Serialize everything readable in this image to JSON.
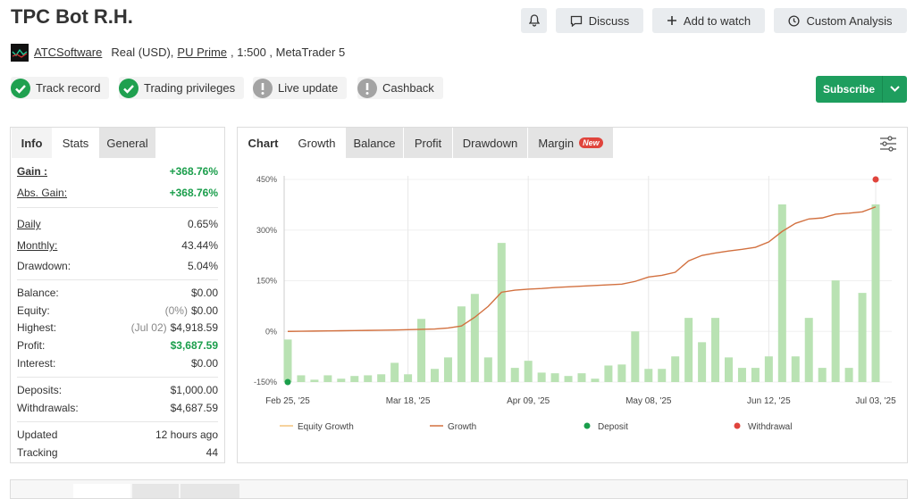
{
  "header": {
    "title": "TPC Bot R.H.",
    "author": "ATCSoftware",
    "account": "Real (USD),",
    "broker": "PU Prime",
    "details": ", 1:500 , MetaTrader 5"
  },
  "buttons": [
    "Discuss",
    "Add to watch",
    "Custom Analysis",
    "Subscribe"
  ],
  "badges": [
    {
      "label": "Track record",
      "ok": true
    },
    {
      "label": "Trading privileges",
      "ok": true
    },
    {
      "label": "Live update",
      "ok": false
    },
    {
      "label": "Cashback",
      "ok": false
    }
  ],
  "stats_tabs": [
    "Info",
    "Stats",
    "General"
  ],
  "stats": [
    [
      {
        "label": "Gain :",
        "value": "+368.76%",
        "link": true,
        "bold": true,
        "positive": true
      },
      {
        "label": "Abs. Gain:",
        "value": "+368.76%",
        "link": true,
        "positive": true
      }
    ],
    [
      {
        "label": "Daily",
        "value": "0.65%",
        "link": true
      },
      {
        "label": "Monthly:",
        "value": "43.44%",
        "link": true
      },
      {
        "label": "Drawdown:",
        "value": "5.04%"
      }
    ],
    [
      {
        "label": "Balance:",
        "value": "$0.00"
      },
      {
        "label": "Equity:",
        "note": "(0%)",
        "value": "$0.00"
      },
      {
        "label": "Highest:",
        "note": "(Jul 02)",
        "value": "$4,918.59"
      },
      {
        "label": "Profit:",
        "value": "$3,687.59",
        "positive": true
      },
      {
        "label": "Interest:",
        "value": "$0.00"
      }
    ],
    [
      {
        "label": "Deposits:",
        "value": "$1,000.00"
      },
      {
        "label": "Withdrawals:",
        "value": "$4,687.59"
      }
    ],
    [
      {
        "label": "Updated",
        "value": "12 hours ago"
      },
      {
        "label": "Tracking",
        "value": "44"
      }
    ]
  ],
  "chart_tabs": [
    "Chart",
    "Growth",
    "Balance",
    "Profit",
    "Drawdown",
    "Margin"
  ],
  "new_badge": "New",
  "chart_data": {
    "type": "bar",
    "categories": [
      "Feb 25, '25",
      null,
      null,
      null,
      null,
      null,
      null,
      null,
      null,
      "Mar 18, '25",
      null,
      null,
      null,
      null,
      null,
      null,
      null,
      null,
      "Apr 09, '25",
      null,
      null,
      null,
      null,
      null,
      null,
      null,
      null,
      "May 08, '25",
      null,
      null,
      null,
      null,
      null,
      null,
      null,
      null,
      "Jun 12, '25",
      null,
      null,
      null,
      null,
      null,
      null,
      null,
      "Jul 03, '25"
    ],
    "bar_color": "#b9e2b3",
    "values": [
      -24,
      -130,
      -143,
      -130,
      -140,
      -132,
      -130,
      -127,
      -93,
      -127,
      37,
      -111,
      -77,
      74,
      111,
      -77,
      262,
      -108,
      -87,
      -122,
      -124,
      -132,
      -124,
      -140,
      -101,
      -98,
      0,
      -111,
      -111,
      -74,
      40,
      -32,
      40,
      -77,
      -108,
      -108,
      -74,
      376,
      -74,
      40,
      -108,
      151,
      -108,
      114,
      376
    ],
    "series": [
      {
        "name": "Equity Growth",
        "color": "#f2c27c"
      },
      {
        "name": "Growth",
        "color": "#d2703f",
        "values": [
          0,
          0.5,
          1,
          1.5,
          2,
          2.5,
          3,
          3.5,
          4,
          5,
          6,
          7,
          10,
          16,
          42,
          74,
          116,
          122,
          125,
          127,
          130,
          132,
          134,
          136,
          138,
          140,
          148,
          161,
          166,
          175,
          209,
          225,
          232,
          238,
          243,
          249,
          265,
          296,
          320,
          333,
          336,
          347,
          350,
          354,
          368.76
        ]
      }
    ],
    "deposits": {
      "name": "Deposit",
      "color": "#1a9e4b",
      "values": [
        -150,
        null,
        null,
        null,
        null,
        null,
        null,
        null,
        null,
        null,
        null,
        null,
        null,
        null,
        null,
        null,
        null,
        null,
        null,
        null,
        null,
        null,
        null,
        null,
        null,
        null,
        null,
        null,
        null,
        null,
        null,
        null,
        null,
        null,
        null,
        null,
        null,
        null,
        null,
        null,
        null,
        null,
        null,
        null,
        null
      ]
    },
    "withdrawals": {
      "name": "Withdrawal",
      "color": "#e0443c",
      "values": [
        null,
        null,
        null,
        null,
        null,
        null,
        null,
        null,
        null,
        null,
        null,
        null,
        null,
        null,
        null,
        null,
        null,
        null,
        null,
        null,
        null,
        null,
        null,
        null,
        null,
        null,
        null,
        null,
        null,
        null,
        null,
        null,
        null,
        null,
        null,
        null,
        null,
        null,
        null,
        null,
        null,
        null,
        null,
        null,
        450
      ]
    },
    "ylim": [
      -150,
      450
    ],
    "yticks": [
      {
        "value": 450,
        "label": "450%"
      },
      {
        "value": 300,
        "label": "300%"
      },
      {
        "value": 150,
        "label": "150%"
      },
      {
        "value": 0,
        "label": "0%"
      },
      {
        "value": -150,
        "label": "-150%"
      }
    ],
    "grid": true
  }
}
